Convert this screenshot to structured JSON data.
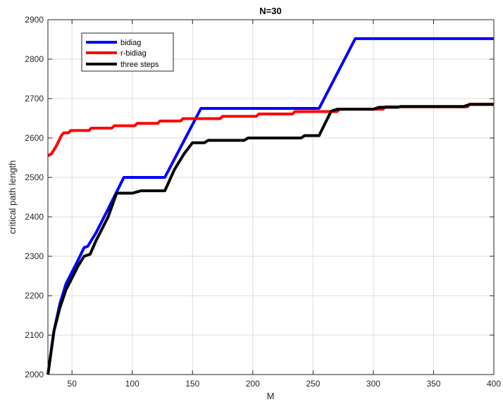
{
  "chart_data": {
    "type": "line",
    "title": "N=30",
    "xlabel": "M",
    "ylabel": "critical path length",
    "xlim": [
      30,
      400
    ],
    "ylim": [
      2000,
      2900
    ],
    "xticks": [
      50,
      100,
      150,
      200,
      250,
      300,
      350,
      400
    ],
    "yticks": [
      2000,
      2100,
      2200,
      2300,
      2400,
      2500,
      2600,
      2700,
      2800,
      2900
    ],
    "grid": true,
    "legend_position": "top-left",
    "series": [
      {
        "name": "bidiag",
        "color": "#0000ff",
        "points": [
          [
            30,
            2000
          ],
          [
            35,
            2110
          ],
          [
            40,
            2180
          ],
          [
            45,
            2230
          ],
          [
            50,
            2260
          ],
          [
            55,
            2290
          ],
          [
            60,
            2322
          ],
          [
            63,
            2325
          ],
          [
            70,
            2360
          ],
          [
            80,
            2420
          ],
          [
            93,
            2500
          ],
          [
            127,
            2500
          ],
          [
            157,
            2675
          ],
          [
            255,
            2675
          ],
          [
            285,
            2852
          ],
          [
            400,
            2852
          ]
        ]
      },
      {
        "name": "r-bidiag",
        "color": "#ff0000",
        "points": [
          [
            30,
            2555
          ],
          [
            33,
            2560
          ],
          [
            37,
            2580
          ],
          [
            41,
            2605
          ],
          [
            43,
            2613
          ],
          [
            47,
            2613
          ],
          [
            49,
            2619
          ],
          [
            64,
            2619
          ],
          [
            66,
            2625
          ],
          [
            83,
            2625
          ],
          [
            85,
            2631
          ],
          [
            102,
            2631
          ],
          [
            104,
            2637
          ],
          [
            121,
            2637
          ],
          [
            123,
            2643
          ],
          [
            140,
            2643
          ],
          [
            142,
            2649
          ],
          [
            173,
            2649
          ],
          [
            175,
            2655
          ],
          [
            203,
            2655
          ],
          [
            205,
            2661
          ],
          [
            233,
            2661
          ],
          [
            235,
            2667
          ],
          [
            270,
            2667
          ],
          [
            272,
            2673
          ],
          [
            308,
            2673
          ],
          [
            310,
            2679
          ],
          [
            378,
            2679
          ],
          [
            380,
            2686
          ],
          [
            400,
            2686
          ]
        ]
      },
      {
        "name": "three steps",
        "color": "#000000",
        "points": [
          [
            30,
            2000
          ],
          [
            35,
            2110
          ],
          [
            40,
            2170
          ],
          [
            45,
            2215
          ],
          [
            50,
            2245
          ],
          [
            55,
            2275
          ],
          [
            60,
            2300
          ],
          [
            65,
            2305
          ],
          [
            70,
            2340
          ],
          [
            80,
            2400
          ],
          [
            87,
            2460
          ],
          [
            100,
            2460
          ],
          [
            107,
            2466
          ],
          [
            127,
            2466
          ],
          [
            135,
            2520
          ],
          [
            143,
            2560
          ],
          [
            150,
            2588
          ],
          [
            160,
            2588
          ],
          [
            163,
            2594
          ],
          [
            193,
            2594
          ],
          [
            196,
            2600
          ],
          [
            240,
            2600
          ],
          [
            243,
            2606
          ],
          [
            255,
            2606
          ],
          [
            265,
            2668
          ],
          [
            270,
            2673
          ],
          [
            300,
            2673
          ],
          [
            305,
            2678
          ],
          [
            320,
            2678
          ],
          [
            323,
            2680
          ],
          [
            375,
            2680
          ],
          [
            380,
            2685
          ],
          [
            400,
            2685
          ]
        ]
      }
    ]
  }
}
